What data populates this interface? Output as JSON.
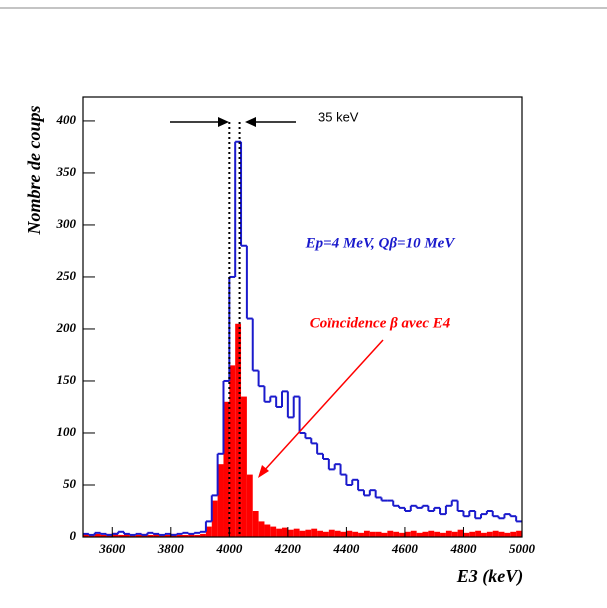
{
  "chart_data": {
    "type": "histogram",
    "xlabel": "E3 (keV)",
    "ylabel": "Nombre de coups",
    "bins": [
      3500,
      3520,
      3540,
      3560,
      3580,
      3600,
      3620,
      3640,
      3660,
      3680,
      3700,
      3720,
      3740,
      3760,
      3780,
      3800,
      3820,
      3840,
      3860,
      3880,
      3900,
      3920,
      3940,
      3960,
      3980,
      4000,
      4020,
      4040,
      4060,
      4080,
      4100,
      4120,
      4140,
      4160,
      4180,
      4200,
      4220,
      4240,
      4260,
      4280,
      4300,
      4320,
      4340,
      4360,
      4380,
      4400,
      4420,
      4440,
      4460,
      4480,
      4500,
      4520,
      4540,
      4560,
      4580,
      4600,
      4620,
      4640,
      4660,
      4680,
      4700,
      4720,
      4740,
      4760,
      4780,
      4800,
      4820,
      4840,
      4860,
      4880,
      4900,
      4920,
      4940,
      4960,
      4980,
      5000
    ],
    "series": [
      {
        "name": "Ep=4 MeV, Qβ=10 MeV",
        "color": "#1a1acc",
        "style": "step",
        "values": [
          3,
          2,
          4,
          3,
          2,
          3,
          5,
          3,
          2,
          3,
          2,
          4,
          3,
          2,
          3,
          2,
          3,
          4,
          3,
          4,
          5,
          15,
          40,
          80,
          150,
          250,
          380,
          280,
          210,
          160,
          145,
          130,
          135,
          125,
          140,
          115,
          135,
          100,
          95,
          90,
          80,
          75,
          65,
          70,
          60,
          50,
          55,
          45,
          40,
          45,
          38,
          35,
          35,
          30,
          28,
          25,
          30,
          28,
          30,
          25,
          28,
          22,
          30,
          35,
          25,
          20,
          25,
          18,
          22,
          25,
          20,
          18,
          22,
          20,
          15
        ]
      },
      {
        "name": "Coïncidence β avec E4",
        "color": "#ff0000",
        "style": "filled",
        "values": [
          3,
          2,
          3,
          2,
          3,
          4,
          2,
          3,
          2,
          2,
          3,
          2,
          3,
          2,
          2,
          3,
          2,
          2,
          3,
          2,
          3,
          10,
          35,
          70,
          130,
          165,
          205,
          135,
          60,
          25,
          15,
          12,
          10,
          8,
          9,
          7,
          8,
          6,
          7,
          8,
          6,
          5,
          7,
          6,
          5,
          6,
          5,
          4,
          6,
          5,
          5,
          4,
          6,
          5,
          4,
          5,
          6,
          4,
          5,
          6,
          5,
          4,
          6,
          5,
          7,
          4,
          5,
          6,
          4,
          5,
          6,
          5,
          4,
          5,
          6
        ]
      }
    ],
    "markers": [
      4000,
      4035
    ],
    "marker_label": "35 keV",
    "xlim": [
      3500,
      5000
    ],
    "xticks": [
      3600,
      3800,
      4000,
      4200,
      4400,
      4600,
      4800,
      5000
    ],
    "ylim": [
      0,
      423
    ],
    "yticks": [
      0,
      50,
      100,
      150,
      200,
      250,
      300,
      350,
      400
    ]
  }
}
